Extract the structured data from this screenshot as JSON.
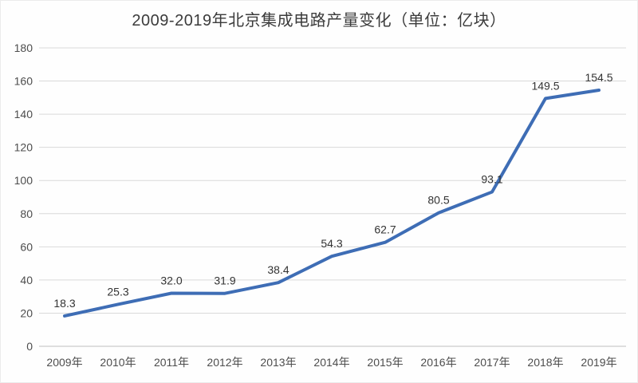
{
  "title": "2009-2019年北京集成电路产量变化（单位：亿块）",
  "chart_data": {
    "type": "line",
    "title": "2009-2019年北京集成电路产量变化（单位：亿块）",
    "categories": [
      "2009年",
      "2010年",
      "2011年",
      "2012年",
      "2013年",
      "2014年",
      "2015年",
      "2016年",
      "2017年",
      "2018年",
      "2019年"
    ],
    "series": [
      {
        "name": "集成电路产量",
        "values": [
          18.3,
          25.3,
          32.0,
          31.9,
          38.4,
          54.3,
          62.7,
          80.5,
          93.1,
          149.5,
          154.5
        ],
        "value_labels": [
          "18.3",
          "25.3",
          "32.0",
          "31.9",
          "38.4",
          "54.3",
          "62.7",
          "80.5",
          "93.1",
          "149.5",
          "154.5"
        ]
      }
    ],
    "xlabel": "",
    "ylabel": "",
    "ylim": [
      0,
      180
    ],
    "y_ticks": [
      0,
      20,
      40,
      60,
      80,
      100,
      120,
      140,
      160,
      180
    ],
    "grid": true,
    "legend_position": "none",
    "colors": {
      "line": "#3e6db5",
      "gridline": "#d9d9d9",
      "axis_line": "#bfbfbf",
      "tick_label": "#4d4d4d",
      "data_label": "#333333",
      "title": "#3b3b3b",
      "background": "#fefefe"
    }
  }
}
